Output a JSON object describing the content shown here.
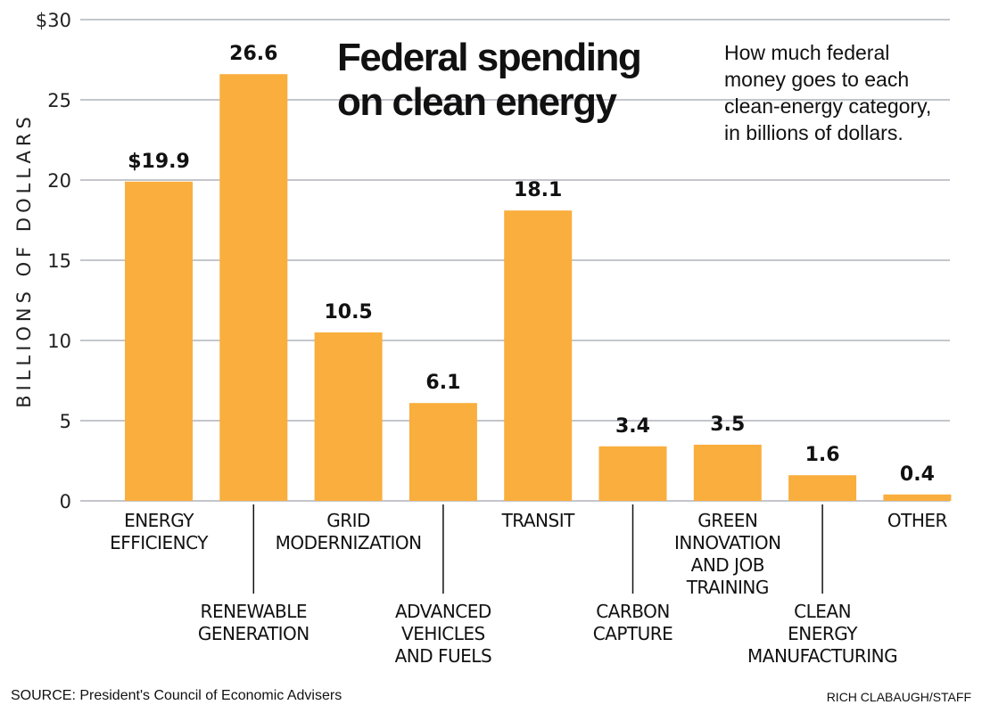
{
  "chart_data": {
    "type": "bar",
    "title": "Federal spending on clean energy",
    "title_lines": [
      "Federal spending",
      "on clean energy"
    ],
    "subtitle": "How much federal money goes to each clean-energy category, in billions of dollars.",
    "subtitle_lines": [
      "How much federal",
      "money goes to each",
      "clean-energy category,",
      "in billions of dollars."
    ],
    "xlabel": "",
    "ylabel": "BILLIONS OF DOLLARS",
    "ylim": [
      0,
      30
    ],
    "yticks": [
      0,
      5,
      10,
      15,
      20,
      25,
      30
    ],
    "ytick_labels": [
      "0",
      "5",
      "10",
      "15",
      "20",
      "25",
      "$30"
    ],
    "grid": true,
    "bar_color": "#F9AE3D",
    "categories": [
      "ENERGY EFFICIENCY",
      "RENEWABLE GENERATION",
      "GRID MODERNIZATION",
      "ADVANCED VEHICLES AND FUELS",
      "TRANSIT",
      "CARBON CAPTURE",
      "GREEN INNOVATION AND JOB TRAINING",
      "CLEAN ENERGY MANUFACTURING",
      "OTHER"
    ],
    "category_label_lines": [
      [
        "ENERGY",
        "EFFICIENCY"
      ],
      [
        "RENEWABLE",
        "GENERATION"
      ],
      [
        "GRID",
        "MODERNIZATION"
      ],
      [
        "ADVANCED",
        "VEHICLES",
        "AND FUELS"
      ],
      [
        "TRANSIT"
      ],
      [
        "CARBON",
        "CAPTURE"
      ],
      [
        "GREEN",
        "INNOVATION",
        "AND JOB",
        "TRAINING"
      ],
      [
        "CLEAN",
        "ENERGY",
        "MANUFACTURING"
      ],
      [
        "OTHER"
      ]
    ],
    "category_label_offset": [
      false,
      true,
      false,
      true,
      false,
      true,
      false,
      true,
      false
    ],
    "values": [
      19.9,
      26.6,
      10.5,
      6.1,
      18.1,
      3.4,
      3.5,
      1.6,
      0.4
    ],
    "value_labels": [
      "$19.9",
      "26.6",
      "10.5",
      "6.1",
      "18.1",
      "3.4",
      "3.5",
      "1.6",
      "0.4"
    ]
  },
  "footer": {
    "source": "SOURCE: President's Council of Economic Advisers",
    "credit": "RICH CLABAUGH/STAFF"
  }
}
